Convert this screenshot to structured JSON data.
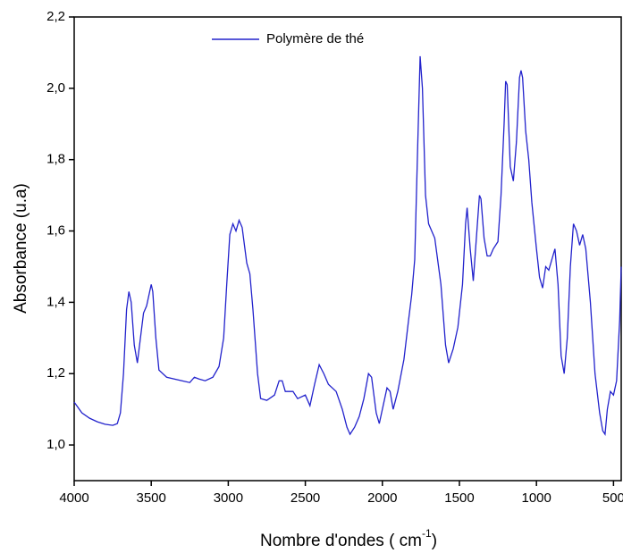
{
  "chart_data": {
    "type": "line",
    "x_label": [
      "Nombre d'ondes ( cm",
      "-1",
      ")"
    ],
    "y_label": "Absorbance (u.a)",
    "xlim": [
      4000,
      450
    ],
    "xticks": [
      4000,
      3500,
      3000,
      2500,
      2000,
      1500,
      1000,
      500
    ],
    "ylim": [
      0.9,
      2.2
    ],
    "yticks": [
      {
        "value": 1.0,
        "label": "1,0"
      },
      {
        "value": 1.2,
        "label": "1,2"
      },
      {
        "value": 1.4,
        "label": "1,4"
      },
      {
        "value": 1.6,
        "label": "1,6"
      },
      {
        "value": 1.8,
        "label": "1,8"
      },
      {
        "value": 2.0,
        "label": "2,0"
      },
      {
        "value": 2.2,
        "label": "2,2"
      }
    ],
    "legend": "top",
    "x": [
      4000,
      3950,
      3900,
      3850,
      3800,
      3750,
      3720,
      3700,
      3680,
      3660,
      3645,
      3630,
      3610,
      3590,
      3570,
      3550,
      3530,
      3510,
      3500,
      3490,
      3470,
      3450,
      3400,
      3300,
      3250,
      3220,
      3190,
      3150,
      3100,
      3060,
      3030,
      3010,
      2990,
      2970,
      2950,
      2930,
      2910,
      2880,
      2860,
      2840,
      2810,
      2790,
      2750,
      2700,
      2670,
      2650,
      2630,
      2580,
      2550,
      2500,
      2470,
      2440,
      2410,
      2380,
      2350,
      2300,
      2260,
      2230,
      2210,
      2180,
      2150,
      2120,
      2090,
      2070,
      2040,
      2020,
      2000,
      1970,
      1950,
      1930,
      1900,
      1860,
      1830,
      1810,
      1790,
      1770,
      1755,
      1740,
      1720,
      1700,
      1660,
      1620,
      1590,
      1570,
      1540,
      1510,
      1480,
      1460,
      1450,
      1430,
      1410,
      1390,
      1370,
      1360,
      1340,
      1320,
      1300,
      1280,
      1250,
      1230,
      1210,
      1200,
      1190,
      1170,
      1150,
      1130,
      1110,
      1100,
      1090,
      1070,
      1050,
      1030,
      1000,
      980,
      960,
      940,
      920,
      900,
      880,
      860,
      840,
      820,
      800,
      780,
      760,
      740,
      720,
      700,
      680,
      650,
      620,
      590,
      570,
      555,
      540,
      520,
      500,
      480,
      460,
      450
    ],
    "series": [
      {
        "name": "Polymère de thé",
        "color": "#2222cc",
        "values": [
          1.12,
          1.09,
          1.075,
          1.065,
          1.058,
          1.055,
          1.06,
          1.09,
          1.2,
          1.38,
          1.43,
          1.4,
          1.28,
          1.23,
          1.3,
          1.37,
          1.39,
          1.43,
          1.45,
          1.43,
          1.3,
          1.21,
          1.19,
          1.18,
          1.175,
          1.19,
          1.185,
          1.18,
          1.19,
          1.22,
          1.3,
          1.45,
          1.59,
          1.62,
          1.6,
          1.63,
          1.61,
          1.51,
          1.48,
          1.38,
          1.2,
          1.13,
          1.125,
          1.14,
          1.18,
          1.18,
          1.15,
          1.15,
          1.13,
          1.14,
          1.11,
          1.17,
          1.225,
          1.2,
          1.17,
          1.15,
          1.1,
          1.05,
          1.03,
          1.05,
          1.08,
          1.13,
          1.2,
          1.19,
          1.09,
          1.06,
          1.1,
          1.16,
          1.15,
          1.1,
          1.15,
          1.24,
          1.35,
          1.42,
          1.52,
          1.85,
          2.09,
          2.0,
          1.7,
          1.62,
          1.58,
          1.45,
          1.28,
          1.23,
          1.27,
          1.33,
          1.45,
          1.62,
          1.665,
          1.55,
          1.46,
          1.58,
          1.7,
          1.69,
          1.58,
          1.53,
          1.53,
          1.55,
          1.57,
          1.7,
          1.9,
          2.02,
          2.01,
          1.78,
          1.74,
          1.85,
          2.03,
          2.05,
          2.03,
          1.88,
          1.8,
          1.68,
          1.55,
          1.47,
          1.44,
          1.5,
          1.49,
          1.52,
          1.55,
          1.45,
          1.25,
          1.2,
          1.3,
          1.5,
          1.62,
          1.6,
          1.56,
          1.59,
          1.55,
          1.4,
          1.2,
          1.09,
          1.04,
          1.03,
          1.1,
          1.15,
          1.14,
          1.18,
          1.35,
          1.5
        ]
      }
    ]
  }
}
